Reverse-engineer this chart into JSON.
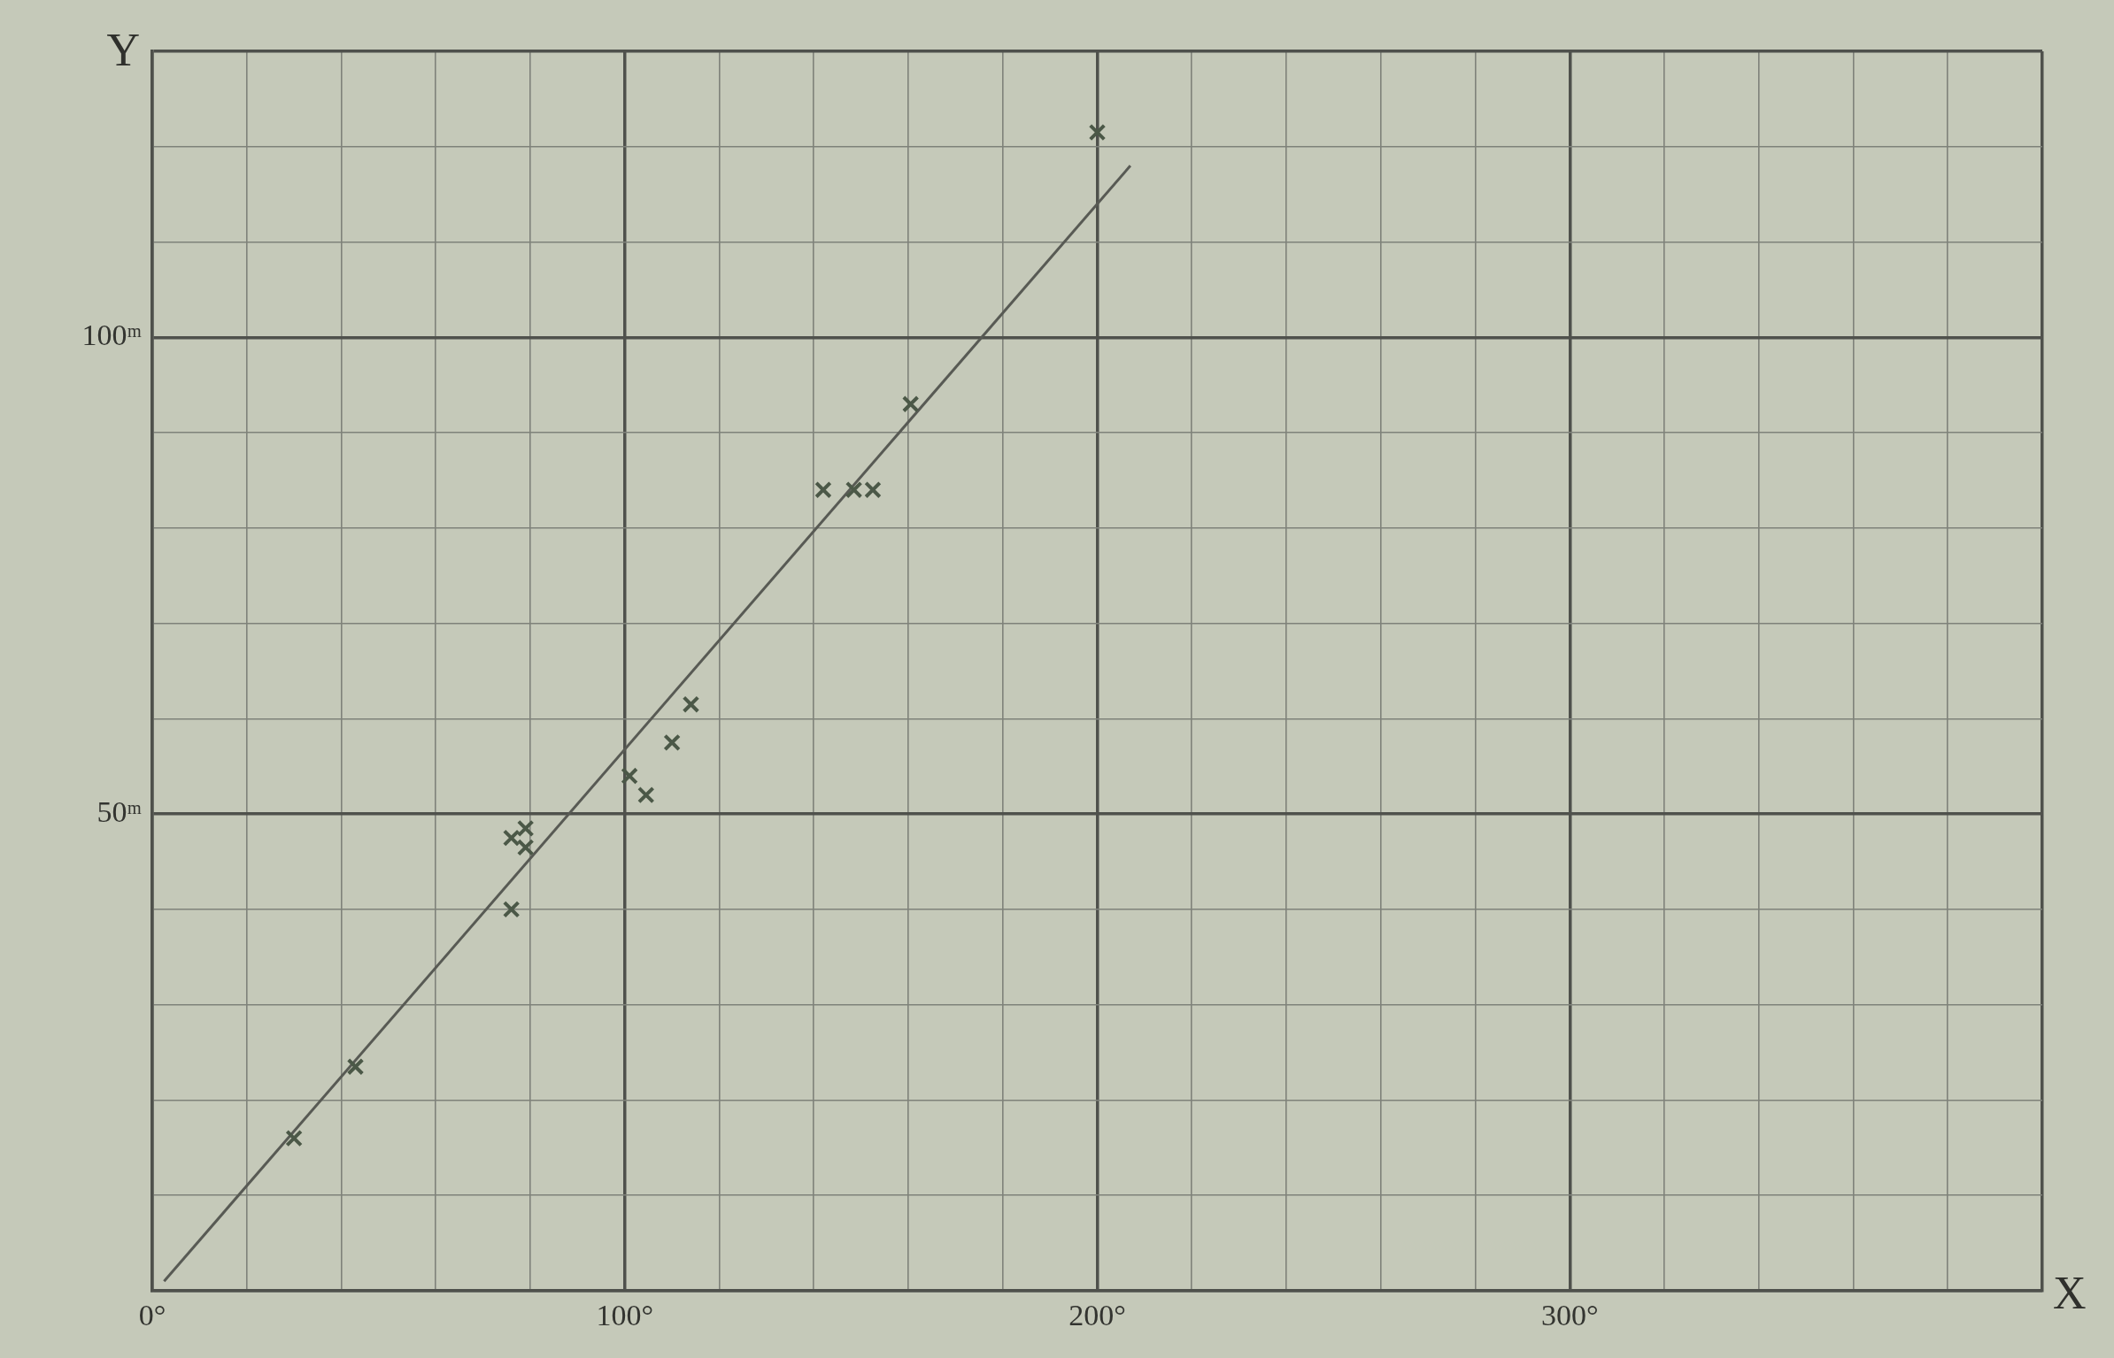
{
  "chart_data": {
    "type": "scatter",
    "xlabel": "X",
    "ylabel": "Y",
    "xlim": [
      0,
      400
    ],
    "ylim": [
      0,
      130
    ],
    "xticks": [
      {
        "value": 0,
        "label": "0°"
      },
      {
        "value": 20,
        "label": null
      },
      {
        "value": 40,
        "label": null
      },
      {
        "value": 60,
        "label": null
      },
      {
        "value": 80,
        "label": null
      },
      {
        "value": 100,
        "label": "100°"
      },
      {
        "value": 120,
        "label": null
      },
      {
        "value": 140,
        "label": null
      },
      {
        "value": 160,
        "label": null
      },
      {
        "value": 180,
        "label": null
      },
      {
        "value": 200,
        "label": "200°"
      },
      {
        "value": 220,
        "label": null
      },
      {
        "value": 240,
        "label": null
      },
      {
        "value": 260,
        "label": null
      },
      {
        "value": 280,
        "label": null
      },
      {
        "value": 300,
        "label": "300°"
      },
      {
        "value": 320,
        "label": null
      },
      {
        "value": 340,
        "label": null
      },
      {
        "value": 360,
        "label": null
      },
      {
        "value": 380,
        "label": null
      },
      {
        "value": 400,
        "label": null
      }
    ],
    "yticks": [
      {
        "value": 0,
        "label": null
      },
      {
        "value": 10,
        "label": null
      },
      {
        "value": 20,
        "label": null
      },
      {
        "value": 30,
        "label": null
      },
      {
        "value": 40,
        "label": null
      },
      {
        "value": 50,
        "label": "50ᵐ"
      },
      {
        "value": 60,
        "label": null
      },
      {
        "value": 70,
        "label": null
      },
      {
        "value": 80,
        "label": null
      },
      {
        "value": 90,
        "label": null
      },
      {
        "value": 100,
        "label": "100ᵐ"
      },
      {
        "value": 110,
        "label": null
      },
      {
        "value": 120,
        "label": null
      },
      {
        "value": 130,
        "label": null
      }
    ],
    "grid": true,
    "marker": "cross",
    "series": [
      {
        "color": "#4b5847",
        "x": [
          30,
          43,
          76,
          76,
          79,
          79,
          101,
          104.5,
          110,
          114,
          142,
          148.5,
          152.5,
          160.5,
          200
        ],
        "values": [
          16,
          23.5,
          40,
          47.5,
          48.5,
          46.5,
          54,
          52,
          57.5,
          61.5,
          84,
          84,
          84,
          93,
          121.5
        ]
      },
      {
        "type": "line",
        "color": "#585a54",
        "marker": "none",
        "x": [
          2.5,
          207
        ],
        "values": [
          1,
          118
        ]
      }
    ]
  }
}
